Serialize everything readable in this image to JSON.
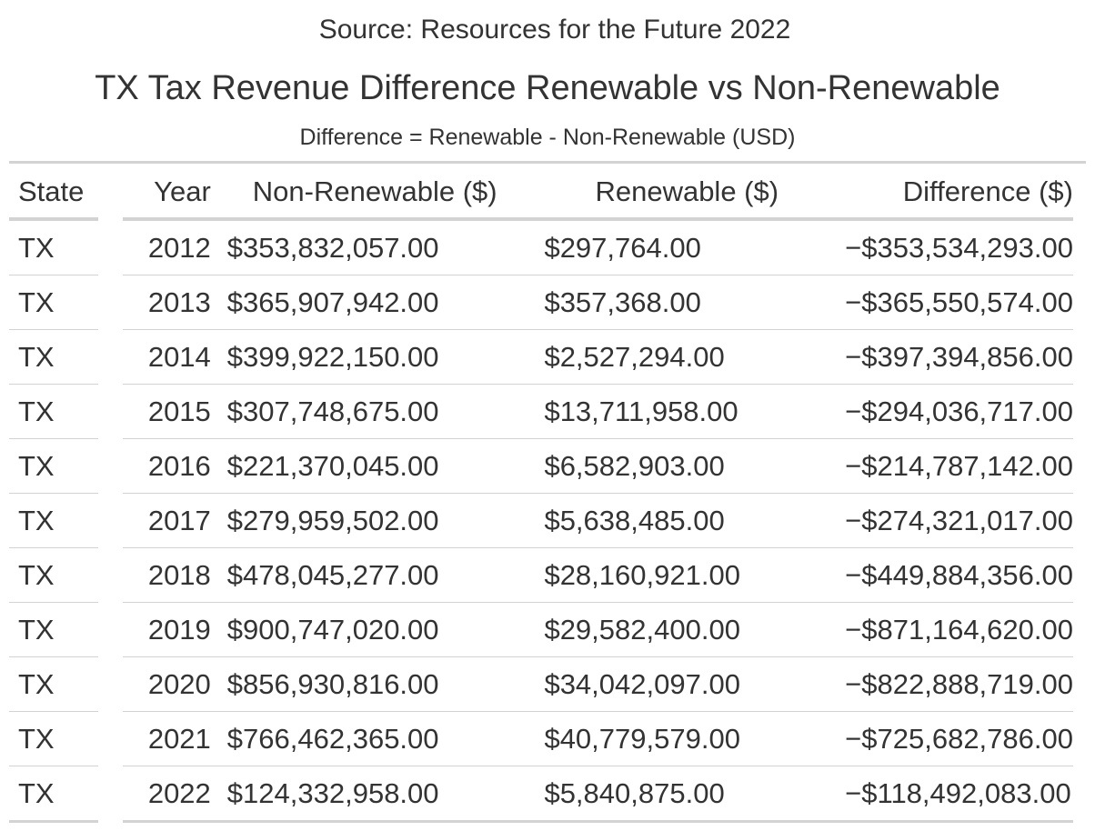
{
  "source": "Source: Resources for the Future 2022",
  "title": "TX Tax Revenue Difference Renewable vs Non-Renewable",
  "subtitle": "Difference = Renewable - Non-Renewable (USD)",
  "table": {
    "columns": [
      "State",
      "Year",
      "Non-Renewable ($)",
      "Renewable ($)",
      "Difference ($)"
    ],
    "rows": [
      [
        "TX",
        "2012",
        "$353,832,057.00",
        "$297,764.00",
        "−$353,534,293.00"
      ],
      [
        "TX",
        "2013",
        "$365,907,942.00",
        "$357,368.00",
        "−$365,550,574.00"
      ],
      [
        "TX",
        "2014",
        "$399,922,150.00",
        "$2,527,294.00",
        "−$397,394,856.00"
      ],
      [
        "TX",
        "2015",
        "$307,748,675.00",
        "$13,711,958.00",
        "−$294,036,717.00"
      ],
      [
        "TX",
        "2016",
        "$221,370,045.00",
        "$6,582,903.00",
        "−$214,787,142.00"
      ],
      [
        "TX",
        "2017",
        "$279,959,502.00",
        "$5,638,485.00",
        "−$274,321,017.00"
      ],
      [
        "TX",
        "2018",
        "$478,045,277.00",
        "$28,160,921.00",
        "−$449,884,356.00"
      ],
      [
        "TX",
        "2019",
        "$900,747,020.00",
        "$29,582,400.00",
        "−$871,164,620.00"
      ],
      [
        "TX",
        "2020",
        "$856,930,816.00",
        "$34,042,097.00",
        "−$822,888,719.00"
      ],
      [
        "TX",
        "2021",
        "$766,462,365.00",
        "$40,779,579.00",
        "−$725,682,786.00"
      ],
      [
        "TX",
        "2022",
        "$124,332,958.00",
        "$5,840,875.00",
        "−$118,492,083.00"
      ]
    ]
  }
}
